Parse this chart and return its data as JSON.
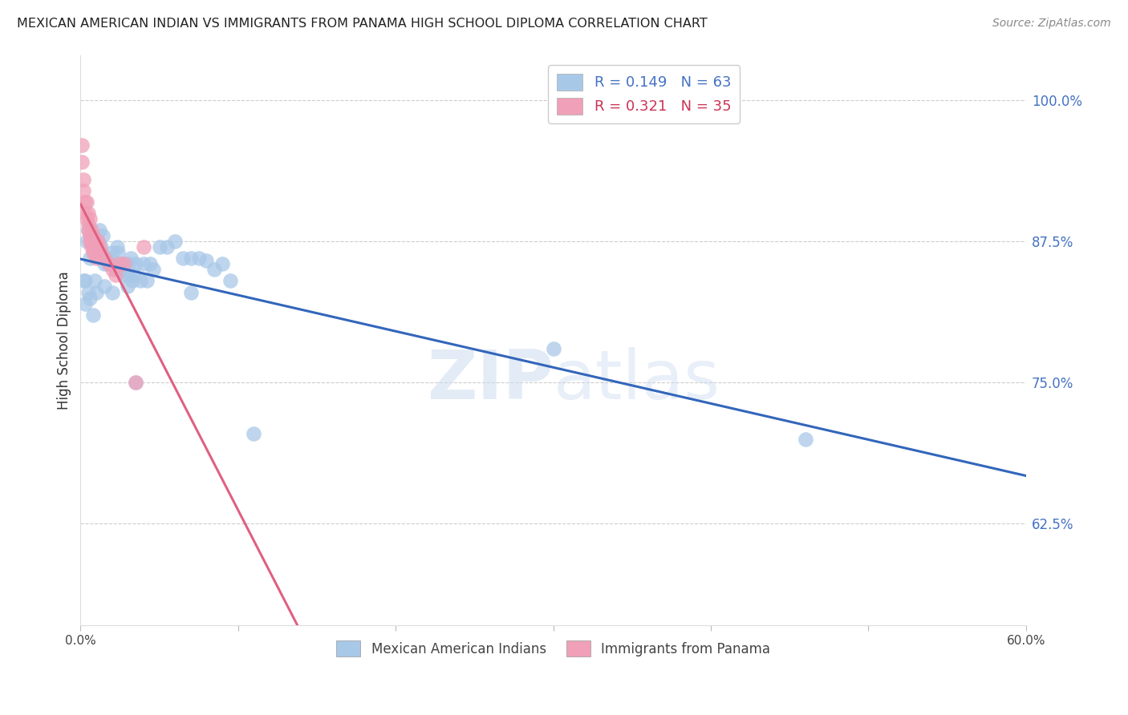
{
  "title": "MEXICAN AMERICAN INDIAN VS IMMIGRANTS FROM PANAMA HIGH SCHOOL DIPLOMA CORRELATION CHART",
  "source": "Source: ZipAtlas.com",
  "ylabel": "High School Diploma",
  "ytick_labels": [
    "100.0%",
    "87.5%",
    "75.0%",
    "62.5%"
  ],
  "ytick_values": [
    1.0,
    0.875,
    0.75,
    0.625
  ],
  "xlim": [
    0.0,
    0.6
  ],
  "ylim": [
    0.535,
    1.04
  ],
  "watermark": "ZIPatlas",
  "blue_color": "#a8c8e8",
  "pink_color": "#f0a0b8",
  "blue_line_color": "#3366bb",
  "pink_line_color": "#e06080",
  "blue_dots": [
    [
      0.003,
      0.84
    ],
    [
      0.004,
      0.875
    ],
    [
      0.005,
      0.885
    ],
    [
      0.006,
      0.86
    ],
    [
      0.007,
      0.875
    ],
    [
      0.008,
      0.88
    ],
    [
      0.009,
      0.84
    ],
    [
      0.01,
      0.87
    ],
    [
      0.011,
      0.875
    ],
    [
      0.012,
      0.885
    ],
    [
      0.013,
      0.87
    ],
    [
      0.014,
      0.88
    ],
    [
      0.015,
      0.855
    ],
    [
      0.016,
      0.86
    ],
    [
      0.017,
      0.855
    ],
    [
      0.018,
      0.86
    ],
    [
      0.019,
      0.855
    ],
    [
      0.02,
      0.865
    ],
    [
      0.021,
      0.855
    ],
    [
      0.022,
      0.85
    ],
    [
      0.023,
      0.87
    ],
    [
      0.024,
      0.865
    ],
    [
      0.025,
      0.855
    ],
    [
      0.026,
      0.85
    ],
    [
      0.027,
      0.855
    ],
    [
      0.028,
      0.85
    ],
    [
      0.029,
      0.845
    ],
    [
      0.03,
      0.845
    ],
    [
      0.031,
      0.855
    ],
    [
      0.032,
      0.86
    ],
    [
      0.033,
      0.84
    ],
    [
      0.034,
      0.845
    ],
    [
      0.035,
      0.855
    ],
    [
      0.038,
      0.84
    ],
    [
      0.04,
      0.855
    ],
    [
      0.042,
      0.84
    ],
    [
      0.044,
      0.855
    ],
    [
      0.046,
      0.85
    ],
    [
      0.05,
      0.87
    ],
    [
      0.055,
      0.87
    ],
    [
      0.06,
      0.875
    ],
    [
      0.065,
      0.86
    ],
    [
      0.07,
      0.86
    ],
    [
      0.075,
      0.86
    ],
    [
      0.08,
      0.858
    ],
    [
      0.085,
      0.85
    ],
    [
      0.09,
      0.855
    ],
    [
      0.095,
      0.84
    ],
    [
      0.003,
      0.82
    ],
    [
      0.002,
      0.84
    ],
    [
      0.005,
      0.83
    ],
    [
      0.006,
      0.825
    ],
    [
      0.008,
      0.81
    ],
    [
      0.01,
      0.83
    ],
    [
      0.015,
      0.835
    ],
    [
      0.02,
      0.83
    ],
    [
      0.03,
      0.835
    ],
    [
      0.035,
      0.75
    ],
    [
      0.07,
      0.83
    ],
    [
      0.11,
      0.705
    ],
    [
      0.3,
      0.78
    ],
    [
      0.46,
      0.7
    ]
  ],
  "pink_dots": [
    [
      0.001,
      0.96
    ],
    [
      0.001,
      0.945
    ],
    [
      0.002,
      0.93
    ],
    [
      0.002,
      0.92
    ],
    [
      0.003,
      0.91
    ],
    [
      0.003,
      0.9
    ],
    [
      0.004,
      0.91
    ],
    [
      0.004,
      0.895
    ],
    [
      0.005,
      0.9
    ],
    [
      0.005,
      0.89
    ],
    [
      0.005,
      0.885
    ],
    [
      0.006,
      0.895
    ],
    [
      0.006,
      0.88
    ],
    [
      0.006,
      0.875
    ],
    [
      0.007,
      0.885
    ],
    [
      0.007,
      0.875
    ],
    [
      0.007,
      0.87
    ],
    [
      0.008,
      0.88
    ],
    [
      0.008,
      0.87
    ],
    [
      0.008,
      0.865
    ],
    [
      0.009,
      0.875
    ],
    [
      0.009,
      0.865
    ],
    [
      0.01,
      0.87
    ],
    [
      0.01,
      0.86
    ],
    [
      0.011,
      0.875
    ],
    [
      0.012,
      0.87
    ],
    [
      0.013,
      0.865
    ],
    [
      0.015,
      0.86
    ],
    [
      0.018,
      0.855
    ],
    [
      0.02,
      0.85
    ],
    [
      0.022,
      0.845
    ],
    [
      0.025,
      0.855
    ],
    [
      0.028,
      0.855
    ],
    [
      0.035,
      0.75
    ],
    [
      0.04,
      0.87
    ]
  ]
}
